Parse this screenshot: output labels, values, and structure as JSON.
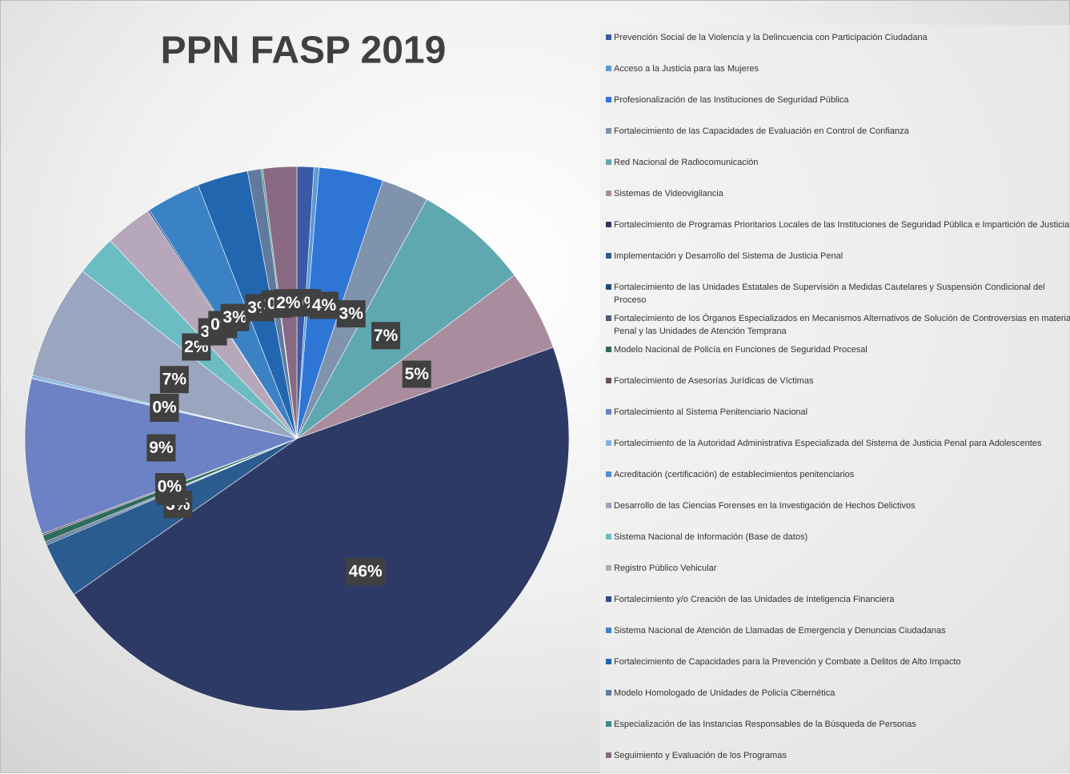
{
  "chart_data": {
    "type": "pie",
    "title": "PPN FASP 2019",
    "categories": [
      "Prevención Social de la Violencia y la Delincuencia con Participación Ciudadana",
      "Acceso a la Justicia para las Mujeres",
      "Profesionalización de las Instituciones de Seguridad Pública",
      "Fortalecimiento de las Capacidades de Evaluación en Control de Confianza",
      "Red Nacional de Radiocomunicación",
      "Sistemas de Videovigilancia",
      "Fortalecimiento de Programas Prioritarios Locales de las Instituciones de Seguridad Pública e Impartición de Justicia",
      "Implementación y Desarrollo del Sistema de Justicia Penal",
      "Fortalecimiento de las Unidades Estatales de Supervisión a Medidas Cautelares y Suspensión Condicional del Proceso",
      "Fortalecimiento de los Órganos Especializados en Mecanismos Alternativos de Solución de Controversias en materia Penal y las Unidades de Atención Temprana",
      "Modelo Nacional de Policía en Funciones de Seguridad Procesal",
      "Fortalecimiento de Asesorías Jurídicas de Víctimas",
      "Fortalecimiento al Sistema Penitenciario Nacional",
      "Fortalecimiento de la Autoridad Administrativa Especializada del Sistema de Justicia Penal para Adolescentes",
      "Acreditación (certificación) de establecimientos penitenciarios",
      "Desarrollo de las Ciencias Forenses en la Investigación de Hechos Delictivos",
      "Sistema Nacional de Información (Base de datos)",
      "Registro Público Vehicular",
      "Fortalecimiento y/o Creación de las Unidades de Inteligencia Financiera",
      "Sistema Nacional de Atención de Llamadas de Emergencia y Denuncias Ciudadanas",
      "Fortalecimiento de Capacidades para la Prevención y Combate a Delitos de Alto Impacto",
      "Modelo Homologado de Unidades de Policía Cibernética",
      "Especialización de las Instancias Responsables de la Búsqueda de Personas",
      "Seguimiento y Evaluación de los Programas"
    ],
    "values": [
      1.0,
      0.3,
      3.8,
      2.8,
      6.8,
      4.8,
      45.6,
      3.3,
      0.1,
      0.1,
      0.4,
      0.1,
      9.2,
      0.1,
      0.1,
      6.8,
      2.4,
      2.8,
      0.1,
      3.2,
      3.0,
      0.8,
      0.1,
      2.0
    ],
    "value_labels": [
      "1%",
      "0%",
      "4%",
      "3%",
      "7%",
      "5%",
      "46%",
      "3%",
      "0%",
      "0%",
      "0%",
      "0%",
      "9%",
      "0%",
      "0%",
      "7%",
      "2%",
      "3%",
      "0%",
      "3%",
      "3%",
      "1%",
      "0%",
      "2%"
    ],
    "colors": [
      "#3b5aa6",
      "#5b9bd5",
      "#2e75d6",
      "#8093ad",
      "#5fa8b0",
      "#a98d9e",
      "#2e3a66",
      "#2b5c8f",
      "#1f4e79",
      "#4a5a7a",
      "#2f6b5e",
      "#6b4f63",
      "#6c82c4",
      "#7fb2e5",
      "#4f8fd0",
      "#9aa6bf",
      "#6cbcc4",
      "#b7a7bb",
      "#2f4b8a",
      "#3b82c4",
      "#2366b0",
      "#607a9e",
      "#3a8a88",
      "#8a6a82"
    ]
  }
}
